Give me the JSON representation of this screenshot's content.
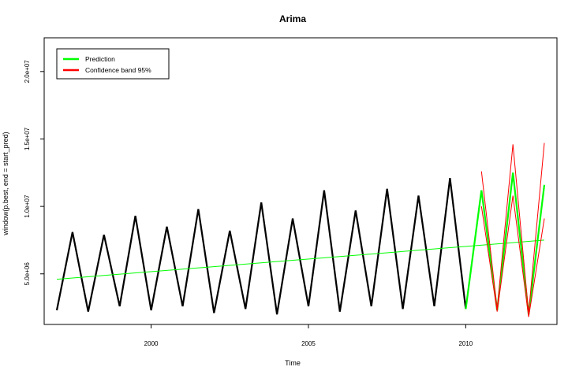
{
  "chart_data": {
    "type": "line",
    "title": "Arima",
    "xlabel": "Time",
    "ylabel": "window(p.best, end = start_pred)",
    "xlim": [
      1996.6,
      2012.9
    ],
    "ylim": [
      1250000,
      22500000
    ],
    "x_ticks": [
      2000,
      2005,
      2010
    ],
    "x_tick_labels": [
      "2000",
      "2005",
      "2010"
    ],
    "y_ticks": [
      5000000,
      10000000,
      15000000,
      20000000
    ],
    "y_tick_labels": [
      "5.0e+06",
      "1.0e+07",
      "1.5e+07",
      "2.0e+07"
    ],
    "grid": false,
    "legend_position": "top-left",
    "legend": [
      {
        "label": "Prediction",
        "color": "#00ff00"
      },
      {
        "label": "Confidence band 95%",
        "color": "#ff0000"
      }
    ],
    "series": [
      {
        "color": "#000000",
        "x": [
          1997.0,
          1997.5,
          1998.0,
          1998.5,
          1999.0,
          1999.5,
          2000.0,
          2000.5,
          2001.0,
          2001.5,
          2002.0,
          2002.5,
          2003.0,
          2003.5,
          2004.0,
          2004.5,
          2005.0,
          2005.5,
          2006.0,
          2006.5,
          2007.0,
          2007.5,
          2008.0,
          2008.5,
          2009.0,
          2009.5,
          2010.0
        ],
        "y": [
          2300000,
          8100000,
          2200000,
          7900000,
          2600000,
          9300000,
          2300000,
          8500000,
          2600000,
          9800000,
          2100000,
          8200000,
          2400000,
          10300000,
          2000000,
          9100000,
          2600000,
          11200000,
          2200000,
          9700000,
          2600000,
          11300000,
          2400000,
          10800000,
          2600000,
          12100000,
          2400000
        ]
      },
      {
        "name": "Prediction",
        "color": "#00ff00",
        "x": [
          2010.0,
          2010.5,
          2011.0,
          2011.5,
          2012.0,
          2012.5
        ],
        "y": [
          2400000,
          11200000,
          2300000,
          12500000,
          2000000,
          11600000
        ]
      },
      {
        "color": "#00ff00",
        "x": [
          1997.0,
          2012.5
        ],
        "y": [
          4600000,
          7500000
        ]
      },
      {
        "name": "Confidence band 95%",
        "color": "#ff0000",
        "x": [
          2010.5,
          2011.0,
          2011.5,
          2012.0,
          2012.5
        ],
        "y": [
          12600000,
          2400000,
          14600000,
          2100000,
          14700000
        ]
      },
      {
        "color": "#ff0000",
        "x": [
          2010.5,
          2011.0,
          2011.5,
          2012.0,
          2012.5
        ],
        "y": [
          10000000,
          2200000,
          10800000,
          1800000,
          9100000
        ]
      }
    ]
  }
}
